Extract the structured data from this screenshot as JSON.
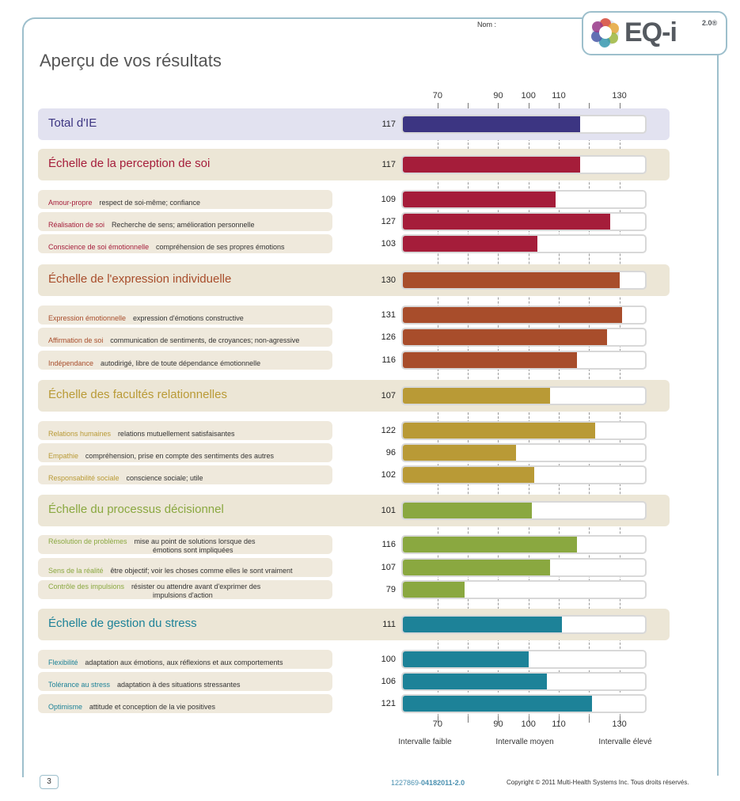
{
  "header": {
    "nom_label": "Nom :",
    "logo_text": "EQ-i",
    "logo_version": "2.0®",
    "page_title": "Aperçu de vos résultats"
  },
  "axis": {
    "ticks": [
      70,
      80,
      90,
      100,
      110,
      120,
      130
    ],
    "tick_labels": [
      "70",
      "90",
      "100",
      "110",
      "130"
    ],
    "range": [
      58,
      139
    ],
    "bands": [
      "Intervalle faible",
      "Intervalle moyen",
      "Intervalle élevé"
    ]
  },
  "colors": {
    "total": "#3c3582",
    "perception": "#a51d3a",
    "expression": "#a84d2b",
    "relationnel": "#b99a36",
    "decision": "#8aa840",
    "stress": "#1d8298",
    "major_bg": "#ece6d6",
    "total_bg": "#e2e2f0",
    "minor_bg": "#efe9dc"
  },
  "chart_data": {
    "type": "bar",
    "orientation": "horizontal",
    "xlim": [
      58,
      139
    ],
    "ticks": [
      70,
      90,
      100,
      110,
      130
    ],
    "rows": [
      {
        "kind": "total",
        "group": "total",
        "title": "Total d'IE",
        "value": 117
      },
      {
        "kind": "major",
        "group": "perception",
        "title": "Échelle de la perception de soi",
        "value": 117
      },
      {
        "kind": "minor",
        "group": "perception",
        "title": "Amour-propre",
        "desc": "respect de soi-même; confiance",
        "value": 109
      },
      {
        "kind": "minor",
        "group": "perception",
        "title": "Réalisation de soi",
        "desc": "Recherche de sens; amélioration personnelle",
        "value": 127
      },
      {
        "kind": "minor",
        "group": "perception",
        "title": "Conscience de soi émotionnelle",
        "desc": "compréhension de ses propres émotions",
        "value": 103
      },
      {
        "kind": "major",
        "group": "expression",
        "title": "Échelle de l'expression individuelle",
        "value": 130
      },
      {
        "kind": "minor",
        "group": "expression",
        "title": "Expression émotionnelle",
        "desc": "expression d'émotions constructive",
        "value": 131
      },
      {
        "kind": "minor",
        "group": "expression",
        "title": "Affirmation de soi",
        "desc": "communication de sentiments, de croyances; non-agressive",
        "value": 126
      },
      {
        "kind": "minor",
        "group": "expression",
        "title": "Indépendance",
        "desc": "autodirigé, libre de toute dépendance émotionnelle",
        "value": 116
      },
      {
        "kind": "major",
        "group": "relationnel",
        "title": "Échelle des facultés relationnelles",
        "value": 107
      },
      {
        "kind": "minor",
        "group": "relationnel",
        "title": "Relations humaines",
        "desc": "relations mutuellement satisfaisantes",
        "value": 122
      },
      {
        "kind": "minor",
        "group": "relationnel",
        "title": "Empathie",
        "desc": "compréhension, prise en compte des sentiments des autres",
        "value": 96
      },
      {
        "kind": "minor",
        "group": "relationnel",
        "title": "Responsabilité sociale",
        "desc": "conscience sociale; utile",
        "value": 102
      },
      {
        "kind": "major",
        "group": "decision",
        "title": "Échelle du processus décisionnel",
        "value": 101
      },
      {
        "kind": "minor",
        "group": "decision",
        "title": "Résolution de problèmes",
        "desc": "mise au point de solutions lorsque des",
        "desc2": "émotions sont impliquées",
        "value": 116
      },
      {
        "kind": "minor",
        "group": "decision",
        "title": "Sens de la réalité",
        "desc": "être objectif; voir les choses comme elles le sont vraiment",
        "value": 107
      },
      {
        "kind": "minor",
        "group": "decision",
        "title": "Contrôle des impulsions",
        "desc": "résister ou attendre avant d'exprimer des",
        "desc2": "impulsions d'action",
        "value": 79
      },
      {
        "kind": "major",
        "group": "stress",
        "title": "Échelle de gestion du stress",
        "value": 111
      },
      {
        "kind": "minor",
        "group": "stress",
        "title": "Flexibilité",
        "desc": "adaptation aux émotions, aux réflexions et aux comportements",
        "value": 100
      },
      {
        "kind": "minor",
        "group": "stress",
        "title": "Tolérance au stress",
        "desc": "adaptation à des situations stressantes",
        "value": 106
      },
      {
        "kind": "minor",
        "group": "stress",
        "title": "Optimisme",
        "desc": "attitude et conception de la vie positives",
        "value": 121
      }
    ]
  },
  "footer": {
    "page_number": "3",
    "code_a": "1227869-",
    "code_b": "04182011",
    "code_c": "-2.0",
    "copyright": "Copyright © 2011 Multi-Health Systems Inc. Tous droits réservés."
  }
}
